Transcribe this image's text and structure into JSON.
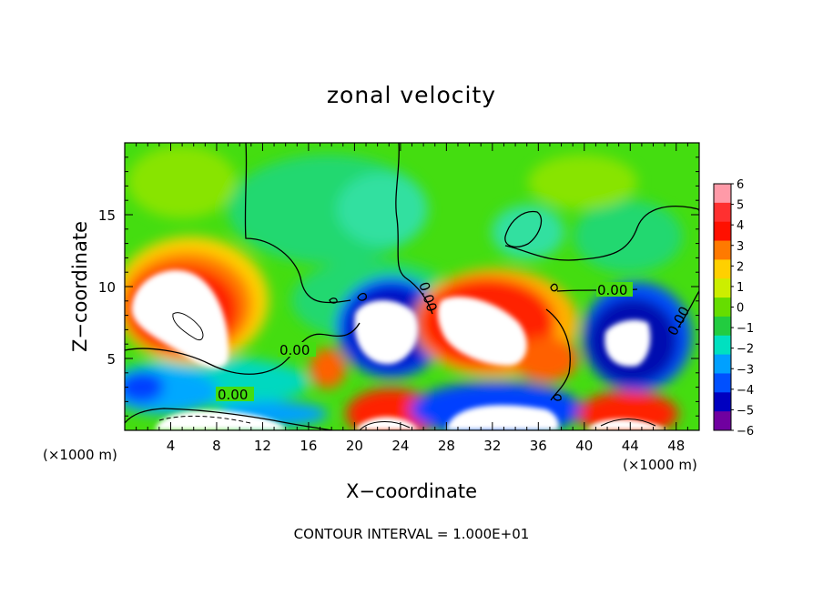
{
  "chart_data": {
    "type": "heatmap",
    "title": "zonal velocity",
    "xlabel": "X−coordinate",
    "ylabel": "Z−coordinate",
    "x_unit_left": "(×1000 m)",
    "x_unit_right": "(×1000 m)",
    "xlim": [
      0,
      50
    ],
    "ylim": [
      0,
      20
    ],
    "x_ticks": [
      4,
      8,
      12,
      16,
      20,
      24,
      28,
      32,
      36,
      40,
      44,
      48
    ],
    "y_ticks": [
      5,
      10,
      15
    ],
    "colorbar": {
      "range": [
        -6,
        6
      ],
      "ticks": [
        "6",
        "5",
        "4",
        "3",
        "2",
        "1",
        "0",
        "−1",
        "−2",
        "−3",
        "−4",
        "−5",
        "−6"
      ],
      "colors": [
        "#ff9aa8",
        "#ff3030",
        "#ff1000",
        "#ff7a00",
        "#ffd000",
        "#ccee00",
        "#66dd00",
        "#22cc40",
        "#00e0c0",
        "#00a0ff",
        "#0050ff",
        "#0000c0",
        "#7000a0"
      ]
    },
    "contour_labels": [
      "0.00",
      "0.00",
      "0.00",
      "0.00",
      "0.00"
    ],
    "footer": "CONTOUR INTERVAL = 1.000E+01"
  }
}
